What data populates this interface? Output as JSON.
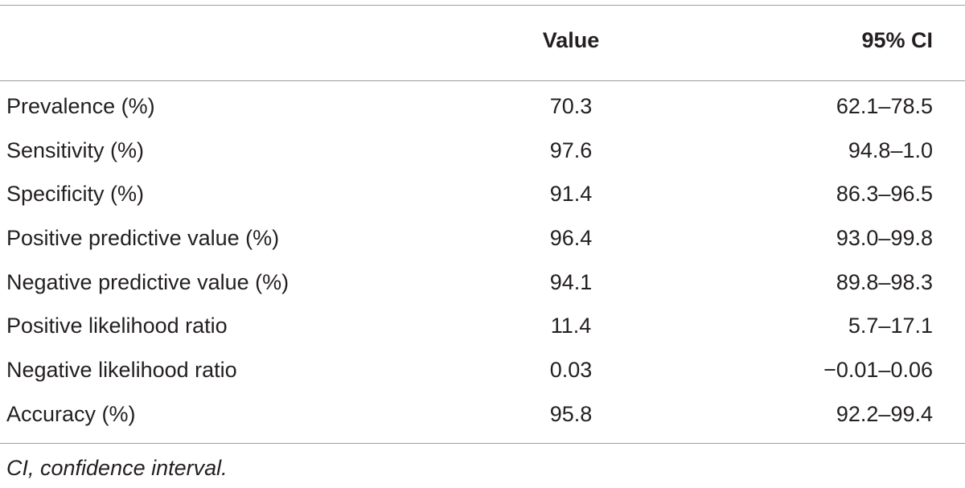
{
  "table": {
    "headers": {
      "label": "",
      "value": "Value",
      "ci": "95% CI"
    },
    "rows": [
      {
        "label": "Prevalence (%)",
        "value": "70.3",
        "ci": "62.1–78.5"
      },
      {
        "label": "Sensitivity (%)",
        "value": "97.6",
        "ci": "94.8–1.0"
      },
      {
        "label": "Specificity (%)",
        "value": "91.4",
        "ci": "86.3–96.5"
      },
      {
        "label": "Positive predictive value (%)",
        "value": "96.4",
        "ci": "93.0–99.8"
      },
      {
        "label": "Negative predictive value (%)",
        "value": "94.1",
        "ci": "89.8–98.3"
      },
      {
        "label": "Positive likelihood ratio",
        "value": "11.4",
        "ci": "5.7–17.1"
      },
      {
        "label": "Negative likelihood ratio",
        "value": "0.03",
        "ci": "−0.01–0.06"
      },
      {
        "label": "Accuracy (%)",
        "value": "95.8",
        "ci": "92.2–99.4"
      }
    ],
    "footnote": "CI, confidence interval."
  }
}
